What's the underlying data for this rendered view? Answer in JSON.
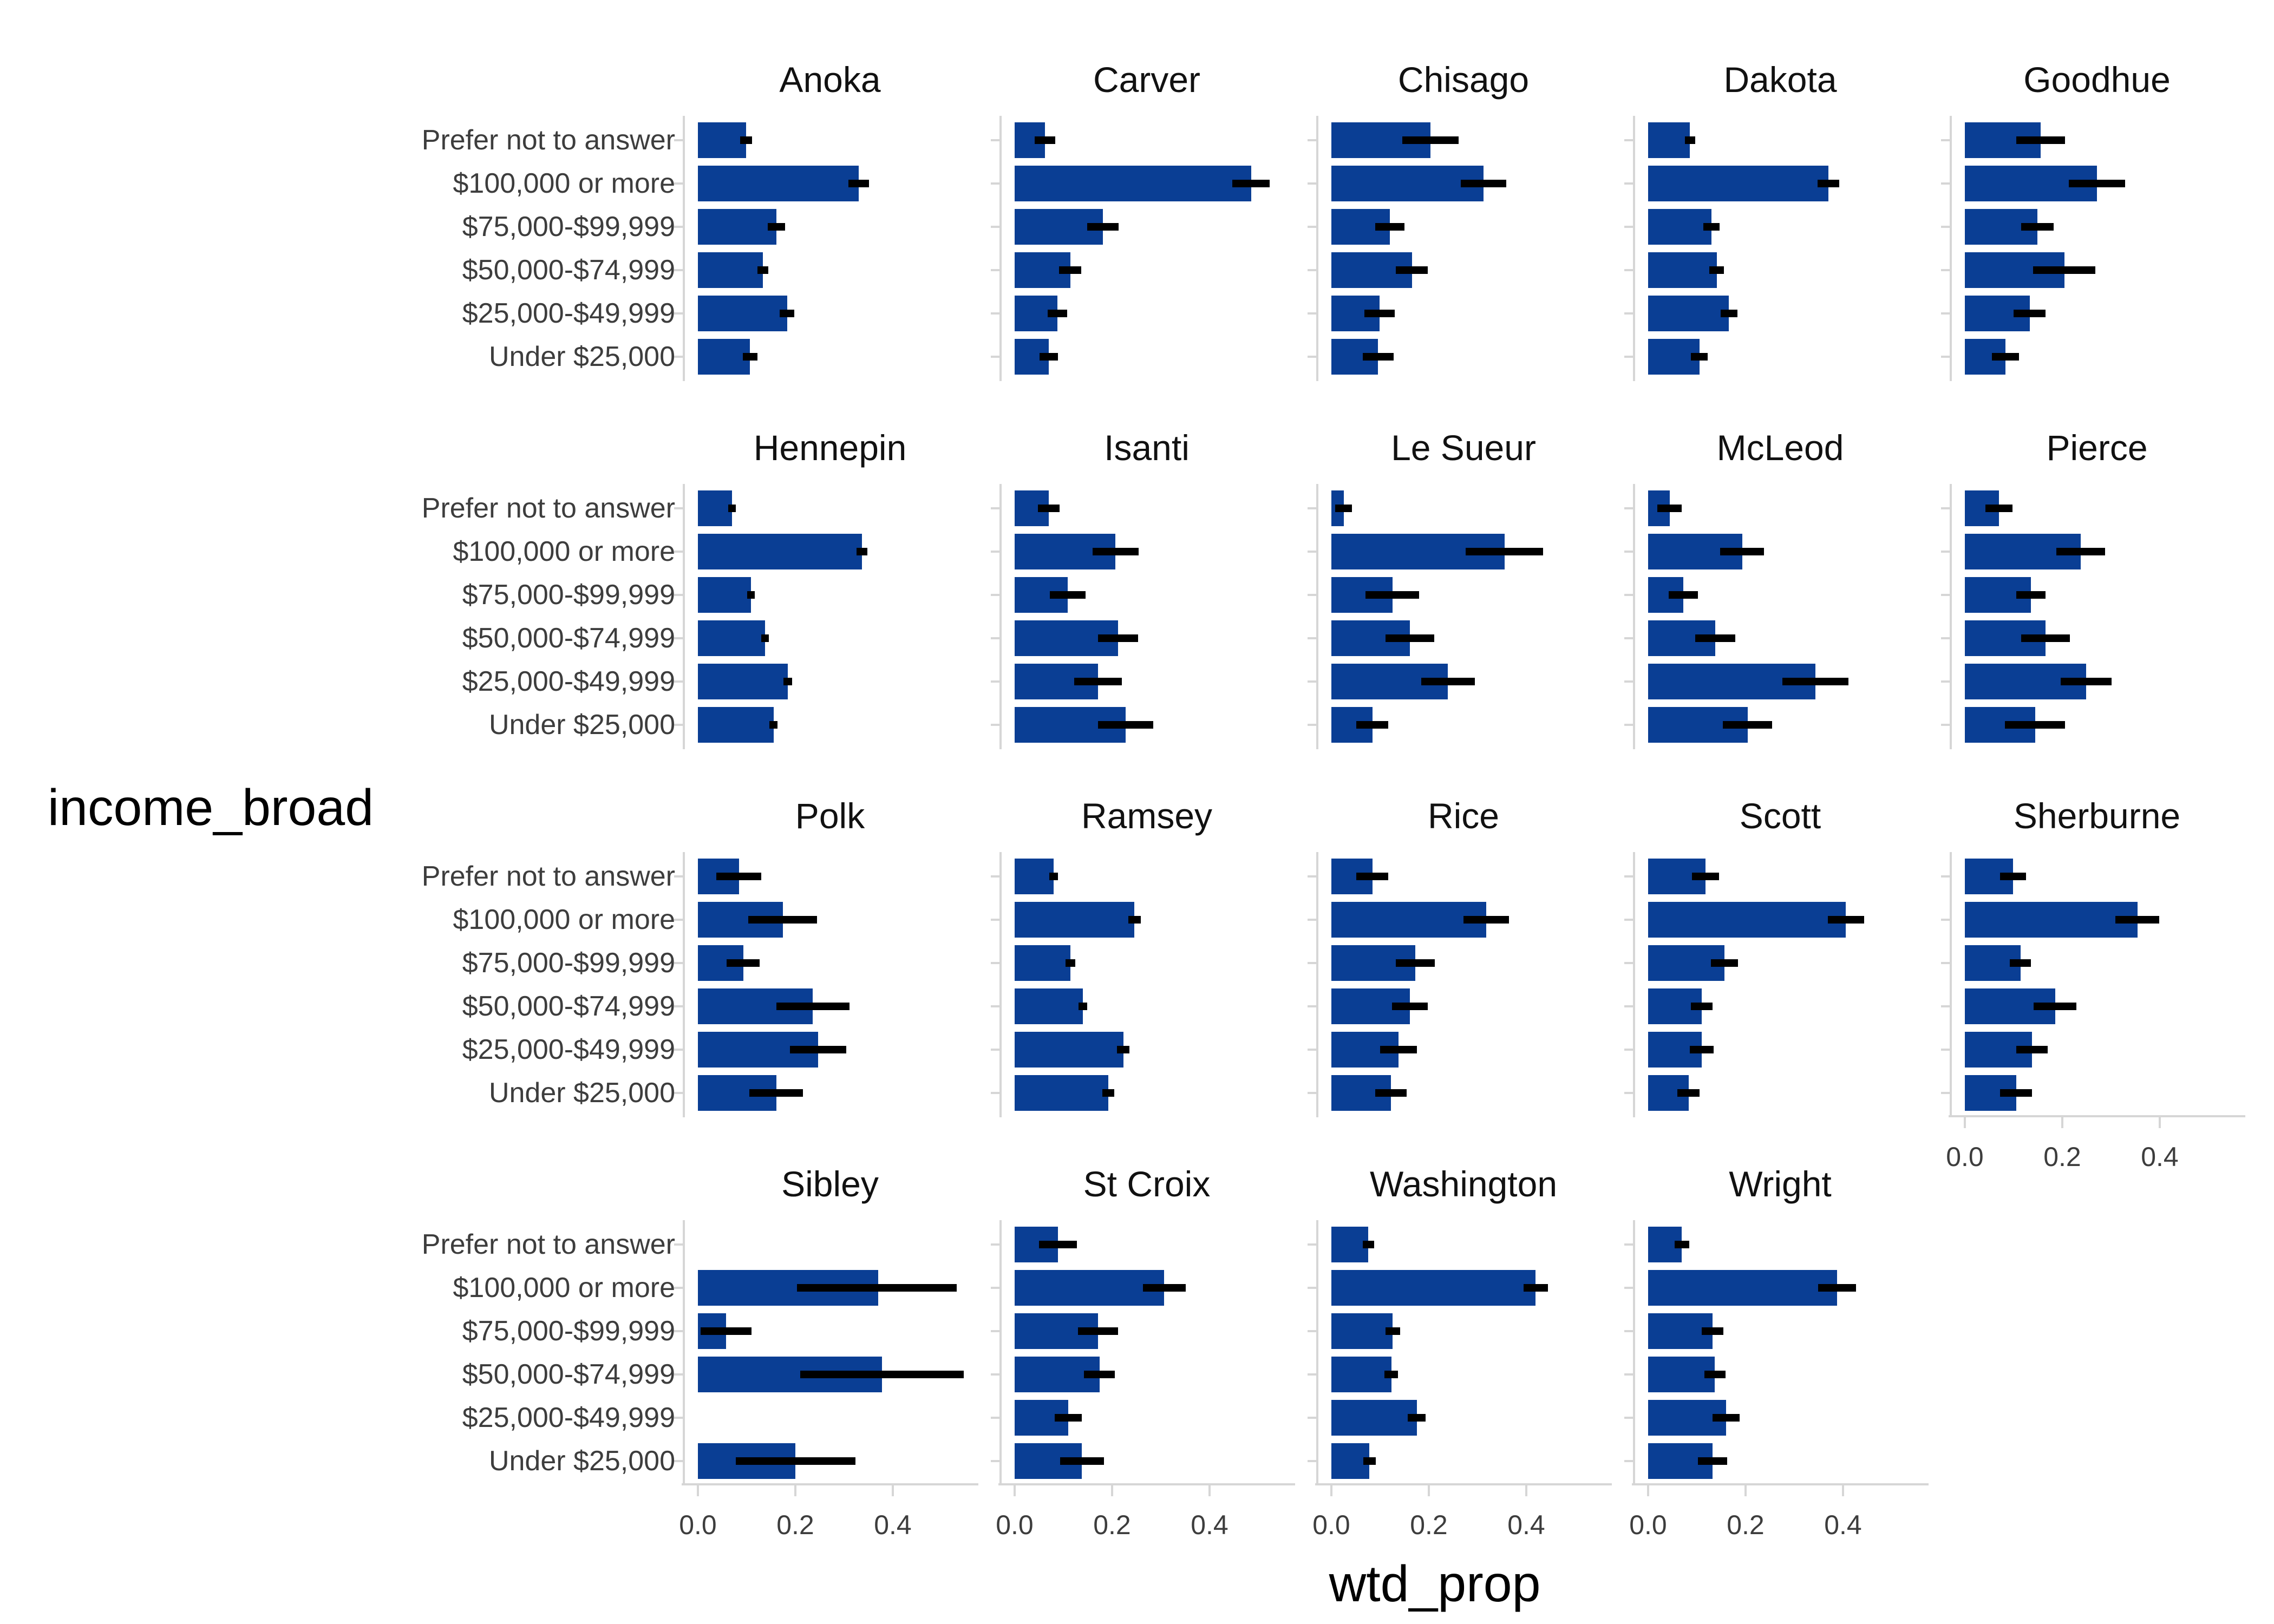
{
  "figure": {
    "y_axis_title": "income_broad",
    "x_axis_title": "wtd_prop",
    "bar_color": "#0a3e94",
    "error_bar_color": "#000000",
    "axis_line_color": "#d6d6d6",
    "tick_label_color": "#3d3d3d",
    "facet_title_color": "#111111",
    "background_color": "#ffffff"
  },
  "chart_data": {
    "type": "bar",
    "orientation": "horizontal",
    "title": "",
    "xlabel": "wtd_prop",
    "ylabel": "income_broad",
    "grid": false,
    "xlim": [
      0,
      0.58
    ],
    "x_ticks": [
      {
        "value": 0.0,
        "label": "0.0"
      },
      {
        "value": 0.2,
        "label": "0.2"
      },
      {
        "value": 0.4,
        "label": "0.4"
      }
    ],
    "categories_top_to_bottom": [
      "Prefer not to answer",
      "$100,000 or more",
      "$75,000-$99,999",
      "$50,000-$74,999",
      "$25,000-$49,999",
      "Under $25,000"
    ],
    "value_format": "[value, ci_low, ci_high], null = no bar shown",
    "facets": [
      {
        "name": "Anoka",
        "row": 0,
        "col": 0,
        "show_x_axis": false,
        "values": [
          [
            0.099,
            0.087,
            0.111
          ],
          [
            0.33,
            0.309,
            0.351
          ],
          [
            0.161,
            0.143,
            0.179
          ],
          [
            0.133,
            0.122,
            0.144
          ],
          [
            0.183,
            0.168,
            0.198
          ],
          [
            0.107,
            0.092,
            0.122
          ]
        ]
      },
      {
        "name": "Carver",
        "row": 0,
        "col": 1,
        "show_x_axis": false,
        "values": [
          [
            0.062,
            0.041,
            0.083
          ],
          [
            0.485,
            0.447,
            0.523
          ],
          [
            0.181,
            0.149,
            0.213
          ],
          [
            0.114,
            0.091,
            0.137
          ],
          [
            0.088,
            0.068,
            0.108
          ],
          [
            0.07,
            0.051,
            0.089
          ]
        ]
      },
      {
        "name": "Chisago",
        "row": 0,
        "col": 2,
        "show_x_axis": false,
        "values": [
          [
            0.203,
            0.145,
            0.261
          ],
          [
            0.312,
            0.265,
            0.359
          ],
          [
            0.12,
            0.09,
            0.15
          ],
          [
            0.165,
            0.132,
            0.198
          ],
          [
            0.099,
            0.068,
            0.13
          ],
          [
            0.096,
            0.064,
            0.128
          ]
        ]
      },
      {
        "name": "Dakota",
        "row": 0,
        "col": 3,
        "show_x_axis": false,
        "values": [
          [
            0.086,
            0.075,
            0.097
          ],
          [
            0.37,
            0.348,
            0.392
          ],
          [
            0.13,
            0.113,
            0.147
          ],
          [
            0.141,
            0.126,
            0.156
          ],
          [
            0.166,
            0.149,
            0.183
          ],
          [
            0.105,
            0.088,
            0.122
          ]
        ]
      },
      {
        "name": "Goodhue",
        "row": 0,
        "col": 4,
        "show_x_axis": false,
        "values": [
          [
            0.155,
            0.105,
            0.205
          ],
          [
            0.271,
            0.213,
            0.329
          ],
          [
            0.149,
            0.116,
            0.182
          ],
          [
            0.204,
            0.14,
            0.268
          ],
          [
            0.133,
            0.1,
            0.166
          ],
          [
            0.083,
            0.055,
            0.111
          ]
        ]
      },
      {
        "name": "Hennepin",
        "row": 1,
        "col": 0,
        "show_x_axis": false,
        "values": [
          [
            0.07,
            0.062,
            0.078
          ],
          [
            0.337,
            0.326,
            0.348
          ],
          [
            0.109,
            0.101,
            0.117
          ],
          [
            0.138,
            0.13,
            0.146
          ],
          [
            0.184,
            0.175,
            0.193
          ],
          [
            0.155,
            0.147,
            0.163
          ]
        ]
      },
      {
        "name": "Isanti",
        "row": 1,
        "col": 1,
        "show_x_axis": false,
        "values": [
          [
            0.07,
            0.048,
            0.092
          ],
          [
            0.207,
            0.16,
            0.254
          ],
          [
            0.109,
            0.072,
            0.146
          ],
          [
            0.212,
            0.171,
            0.253
          ],
          [
            0.171,
            0.122,
            0.22
          ],
          [
            0.228,
            0.171,
            0.285
          ]
        ]
      },
      {
        "name": "Le Sueur",
        "row": 1,
        "col": 2,
        "show_x_axis": false,
        "values": [
          [
            0.025,
            0.008,
            0.042
          ],
          [
            0.355,
            0.276,
            0.434
          ],
          [
            0.125,
            0.07,
            0.18
          ],
          [
            0.161,
            0.111,
            0.211
          ],
          [
            0.239,
            0.184,
            0.294
          ],
          [
            0.084,
            0.051,
            0.117
          ]
        ]
      },
      {
        "name": "McLeod",
        "row": 1,
        "col": 3,
        "show_x_axis": false,
        "values": [
          [
            0.044,
            0.019,
            0.069
          ],
          [
            0.193,
            0.148,
            0.238
          ],
          [
            0.072,
            0.042,
            0.102
          ],
          [
            0.138,
            0.097,
            0.179
          ],
          [
            0.343,
            0.275,
            0.411
          ],
          [
            0.204,
            0.153,
            0.255
          ]
        ]
      },
      {
        "name": "Pierce",
        "row": 1,
        "col": 4,
        "show_x_axis": false,
        "values": [
          [
            0.07,
            0.042,
            0.098
          ],
          [
            0.238,
            0.188,
            0.288
          ],
          [
            0.136,
            0.106,
            0.166
          ],
          [
            0.166,
            0.116,
            0.216
          ],
          [
            0.249,
            0.197,
            0.301
          ],
          [
            0.144,
            0.082,
            0.206
          ]
        ]
      },
      {
        "name": "Polk",
        "row": 2,
        "col": 0,
        "show_x_axis": false,
        "values": [
          [
            0.084,
            0.038,
            0.13
          ],
          [
            0.174,
            0.103,
            0.245
          ],
          [
            0.093,
            0.059,
            0.127
          ],
          [
            0.236,
            0.161,
            0.311
          ],
          [
            0.247,
            0.189,
            0.305
          ],
          [
            0.161,
            0.106,
            0.216
          ]
        ]
      },
      {
        "name": "Ramsey",
        "row": 2,
        "col": 1,
        "show_x_axis": false,
        "values": [
          [
            0.08,
            0.071,
            0.089
          ],
          [
            0.246,
            0.233,
            0.259
          ],
          [
            0.114,
            0.104,
            0.124
          ],
          [
            0.14,
            0.131,
            0.149
          ],
          [
            0.223,
            0.21,
            0.236
          ],
          [
            0.192,
            0.18,
            0.204
          ]
        ]
      },
      {
        "name": "Rice",
        "row": 2,
        "col": 2,
        "show_x_axis": false,
        "values": [
          [
            0.084,
            0.051,
            0.117
          ],
          [
            0.318,
            0.271,
            0.365
          ],
          [
            0.172,
            0.132,
            0.212
          ],
          [
            0.161,
            0.124,
            0.198
          ],
          [
            0.138,
            0.1,
            0.176
          ],
          [
            0.122,
            0.09,
            0.154
          ]
        ]
      },
      {
        "name": "Scott",
        "row": 2,
        "col": 3,
        "show_x_axis": false,
        "values": [
          [
            0.118,
            0.09,
            0.146
          ],
          [
            0.406,
            0.369,
            0.443
          ],
          [
            0.157,
            0.129,
            0.185
          ],
          [
            0.11,
            0.088,
            0.132
          ],
          [
            0.11,
            0.086,
            0.134
          ],
          [
            0.083,
            0.06,
            0.106
          ]
        ]
      },
      {
        "name": "Sherburne",
        "row": 2,
        "col": 4,
        "show_x_axis": true,
        "values": [
          [
            0.099,
            0.072,
            0.126
          ],
          [
            0.354,
            0.309,
            0.399
          ],
          [
            0.114,
            0.092,
            0.136
          ],
          [
            0.185,
            0.141,
            0.229
          ],
          [
            0.138,
            0.106,
            0.17
          ],
          [
            0.105,
            0.072,
            0.138
          ]
        ]
      },
      {
        "name": "Sibley",
        "row": 3,
        "col": 0,
        "show_x_axis": true,
        "values": [
          null,
          [
            0.37,
            0.203,
            0.531
          ],
          [
            0.058,
            0.005,
            0.11
          ],
          [
            0.378,
            0.21,
            0.545
          ],
          null,
          [
            0.2,
            0.078,
            0.323
          ]
        ]
      },
      {
        "name": "St Croix",
        "row": 3,
        "col": 1,
        "show_x_axis": true,
        "values": [
          [
            0.089,
            0.05,
            0.128
          ],
          [
            0.307,
            0.263,
            0.351
          ],
          [
            0.171,
            0.13,
            0.212
          ],
          [
            0.174,
            0.142,
            0.206
          ],
          [
            0.11,
            0.082,
            0.138
          ],
          [
            0.138,
            0.093,
            0.183
          ]
        ]
      },
      {
        "name": "Washington",
        "row": 3,
        "col": 2,
        "show_x_axis": true,
        "values": [
          [
            0.076,
            0.064,
            0.088
          ],
          [
            0.419,
            0.394,
            0.444
          ],
          [
            0.126,
            0.111,
            0.141
          ],
          [
            0.123,
            0.109,
            0.137
          ],
          [
            0.175,
            0.157,
            0.193
          ],
          [
            0.078,
            0.065,
            0.091
          ]
        ]
      },
      {
        "name": "Wright",
        "row": 3,
        "col": 3,
        "show_x_axis": true,
        "values": [
          [
            0.069,
            0.054,
            0.084
          ],
          [
            0.388,
            0.349,
            0.427
          ],
          [
            0.132,
            0.11,
            0.154
          ],
          [
            0.137,
            0.115,
            0.159
          ],
          [
            0.16,
            0.132,
            0.188
          ],
          [
            0.132,
            0.102,
            0.162
          ]
        ]
      }
    ]
  }
}
